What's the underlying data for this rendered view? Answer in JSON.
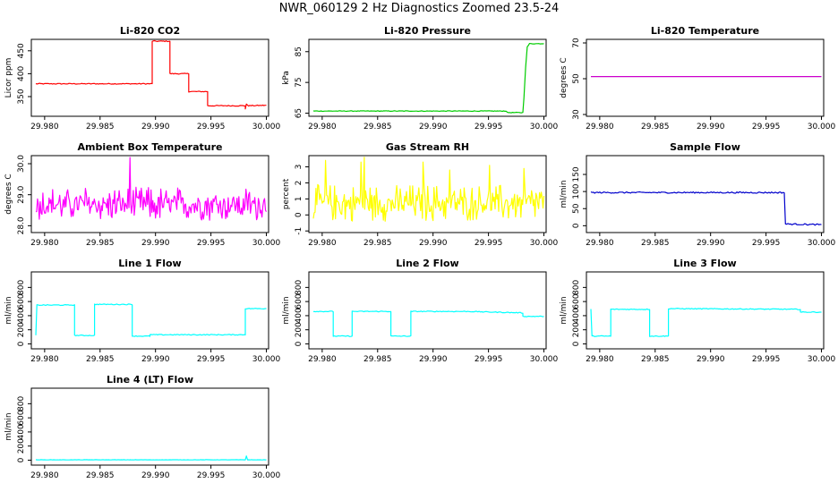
{
  "figure_title": "NWR_060129  2 Hz Diagnostics Zoomed 23.5-24",
  "chart_data": [
    {
      "type": "line",
      "title": "Li-820 CO2",
      "ylabel": "Licor ppm",
      "xlim": [
        29.9788,
        30.0002
      ],
      "ylim": [
        307,
        475
      ],
      "xticks": [
        29.98,
        29.985,
        29.99,
        29.995,
        30.0
      ],
      "xtick_labels": [
        "29.980",
        "29.985",
        "29.990",
        "29.995",
        "30.000"
      ],
      "yticks": [
        350,
        400,
        450
      ],
      "color": "#ff0000",
      "noise": 1,
      "points": [
        [
          29.9792,
          378
        ],
        [
          29.9897,
          378
        ],
        [
          29.9897,
          471
        ],
        [
          29.9913,
          471
        ],
        [
          29.9913,
          400
        ],
        [
          29.993,
          400
        ],
        [
          29.993,
          361
        ],
        [
          29.9947,
          361
        ],
        [
          29.9947,
          330
        ],
        [
          29.9981,
          330
        ],
        [
          29.9981,
          323
        ],
        [
          29.9982,
          333
        ],
        [
          29.9984,
          330
        ],
        [
          30.0,
          331
        ]
      ]
    },
    {
      "type": "line",
      "title": "Li-820 Pressure",
      "ylabel": "kPa",
      "xlim": [
        29.9788,
        30.0002
      ],
      "ylim": [
        64,
        89
      ],
      "xticks": [
        29.98,
        29.985,
        29.99,
        29.995,
        30.0
      ],
      "xtick_labels": [
        "29.980",
        "29.985",
        "29.990",
        "29.995",
        "30.000"
      ],
      "yticks": [
        65,
        75,
        85
      ],
      "color": "#00cc00",
      "noise": 0.1,
      "points": [
        [
          29.9792,
          65.7
        ],
        [
          29.9966,
          65.7
        ],
        [
          29.9967,
          65.2
        ],
        [
          29.9981,
          65.2
        ],
        [
          29.9982,
          70
        ],
        [
          29.99835,
          80
        ],
        [
          29.9985,
          86.5
        ],
        [
          29.9987,
          87.6
        ],
        [
          30.0,
          87.6
        ]
      ]
    },
    {
      "type": "line",
      "title": "Li-820 Temperature",
      "ylabel": "degrees C",
      "xlim": [
        29.9788,
        30.0002
      ],
      "ylim": [
        29,
        72
      ],
      "xticks": [
        29.98,
        29.985,
        29.99,
        29.995,
        30.0
      ],
      "xtick_labels": [
        "29.980",
        "29.985",
        "29.990",
        "29.995",
        "30.000"
      ],
      "yticks": [
        30,
        50,
        70
      ],
      "color": "#cc00cc",
      "noise": 0,
      "points": [
        [
          29.9792,
          51.2
        ],
        [
          30.0,
          51.2
        ]
      ]
    },
    {
      "type": "line",
      "title": "Ambient Box Temperature",
      "ylabel": "degrees C",
      "xlim": [
        29.9788,
        30.0002
      ],
      "ylim": [
        27.78,
        30.26
      ],
      "xticks": [
        29.98,
        29.985,
        29.99,
        29.995,
        30.0
      ],
      "xtick_labels": [
        "29.980",
        "29.985",
        "29.990",
        "29.995",
        "30.000"
      ],
      "yticks": [
        28.0,
        29.0,
        30.0
      ],
      "ytick_labels": [
        "28.0",
        "29.0",
        "30.0"
      ],
      "color": "#ff00ff",
      "noise_band": {
        "center": 28.65,
        "low": 28.15,
        "high": 29.25,
        "spikes": [
          [
            29.9877,
            30.2
          ]
        ]
      },
      "points": []
    },
    {
      "type": "line",
      "title": "Gas Stream RH",
      "ylabel": "percent",
      "xlim": [
        29.9788,
        30.0002
      ],
      "ylim": [
        -1.1,
        3.7
      ],
      "xticks": [
        29.98,
        29.985,
        29.99,
        29.995,
        30.0
      ],
      "xtick_labels": [
        "29.980",
        "29.985",
        "29.990",
        "29.995",
        "30.000"
      ],
      "yticks": [
        -1,
        0,
        1,
        2,
        3
      ],
      "color": "#ffff00",
      "noise_band": {
        "center": 0.7,
        "low": -0.4,
        "high": 1.9,
        "spikes": [
          [
            29.9803,
            3.4
          ],
          [
            29.9835,
            3.3
          ],
          [
            29.9838,
            3.6
          ],
          [
            29.9891,
            3.3
          ],
          [
            29.9915,
            2.8
          ],
          [
            29.9951,
            3.1
          ],
          [
            29.9982,
            2.9
          ]
        ]
      },
      "points": []
    },
    {
      "type": "line",
      "title": "Sample Flow",
      "ylabel": "ml/min",
      "xlim": [
        29.9788,
        30.0002
      ],
      "ylim": [
        -20,
        205
      ],
      "xticks": [
        29.98,
        29.985,
        29.99,
        29.995,
        30.0
      ],
      "xtick_labels": [
        "29.980",
        "29.985",
        "29.990",
        "29.995",
        "30.000"
      ],
      "yticks": [
        0,
        50,
        100,
        150
      ],
      "color": "#0000cc",
      "noise": 2,
      "points": [
        [
          29.9792,
          97
        ],
        [
          29.99665,
          97
        ],
        [
          29.99675,
          5
        ],
        [
          30.0,
          3
        ]
      ]
    },
    {
      "type": "line",
      "title": "Line 1 Flow",
      "ylabel": "ml/min",
      "xlim": [
        29.9788,
        30.0002
      ],
      "ylim": [
        -70,
        1020
      ],
      "xticks": [
        29.98,
        29.985,
        29.99,
        29.995,
        30.0
      ],
      "xtick_labels": [
        "29.980",
        "29.985",
        "29.990",
        "29.995",
        "30.000"
      ],
      "yticks": [
        0,
        200,
        400,
        600,
        800
      ],
      "color": "#00ffff",
      "noise": 6,
      "points": [
        [
          29.9792,
          120
        ],
        [
          29.9793,
          550
        ],
        [
          29.9827,
          550
        ],
        [
          29.9827,
          120
        ],
        [
          29.9845,
          120
        ],
        [
          29.9845,
          560
        ],
        [
          29.9879,
          560
        ],
        [
          29.9879,
          110
        ],
        [
          29.9895,
          110
        ],
        [
          29.9895,
          130
        ],
        [
          29.9981,
          130
        ],
        [
          29.9981,
          500
        ],
        [
          30.0,
          500
        ]
      ]
    },
    {
      "type": "line",
      "title": "Line 2 Flow",
      "ylabel": "ml/min",
      "xlim": [
        29.9788,
        30.0002
      ],
      "ylim": [
        -70,
        1020
      ],
      "xticks": [
        29.98,
        29.985,
        29.99,
        29.995,
        30.0
      ],
      "xtick_labels": [
        "29.980",
        "29.985",
        "29.990",
        "29.995",
        "30.000"
      ],
      "yticks": [
        0,
        200,
        400,
        600,
        800
      ],
      "color": "#00ffff",
      "noise": 6,
      "points": [
        [
          29.9792,
          460
        ],
        [
          29.981,
          460
        ],
        [
          29.981,
          110
        ],
        [
          29.9827,
          110
        ],
        [
          29.9827,
          460
        ],
        [
          29.9862,
          460
        ],
        [
          29.9862,
          110
        ],
        [
          29.988,
          110
        ],
        [
          29.988,
          460
        ],
        [
          29.993,
          460
        ],
        [
          29.9981,
          440
        ],
        [
          29.9981,
          390
        ],
        [
          30.0,
          390
        ]
      ]
    },
    {
      "type": "line",
      "title": "Line 3 Flow",
      "ylabel": "ml/min",
      "xlim": [
        29.9788,
        30.0002
      ],
      "ylim": [
        -70,
        1020
      ],
      "xticks": [
        29.98,
        29.985,
        29.99,
        29.995,
        30.0
      ],
      "xtick_labels": [
        "29.980",
        "29.985",
        "29.990",
        "29.995",
        "30.000"
      ],
      "yticks": [
        0,
        200,
        400,
        600,
        800
      ],
      "color": "#00ffff",
      "noise": 6,
      "points": [
        [
          29.9792,
          490
        ],
        [
          29.9793,
          110
        ],
        [
          29.981,
          110
        ],
        [
          29.981,
          490
        ],
        [
          29.9845,
          490
        ],
        [
          29.9845,
          110
        ],
        [
          29.9862,
          110
        ],
        [
          29.9862,
          500
        ],
        [
          29.9981,
          490
        ],
        [
          29.9981,
          450
        ],
        [
          30.0,
          450
        ]
      ]
    },
    {
      "type": "line",
      "title": "Line 4 (LT) Flow",
      "ylabel": "ml/min",
      "xlim": [
        29.9788,
        30.0002
      ],
      "ylim": [
        -70,
        1020
      ],
      "xticks": [
        29.98,
        29.985,
        29.99,
        29.995,
        30.0
      ],
      "xtick_labels": [
        "29.980",
        "29.985",
        "29.990",
        "29.995",
        "30.000"
      ],
      "yticks": [
        0,
        200,
        400,
        600,
        800
      ],
      "color": "#00ffff",
      "noise": 2,
      "points": [
        [
          29.9792,
          5
        ],
        [
          29.9981,
          5
        ],
        [
          29.9982,
          60
        ],
        [
          29.9983,
          5
        ],
        [
          30.0,
          5
        ]
      ]
    }
  ]
}
